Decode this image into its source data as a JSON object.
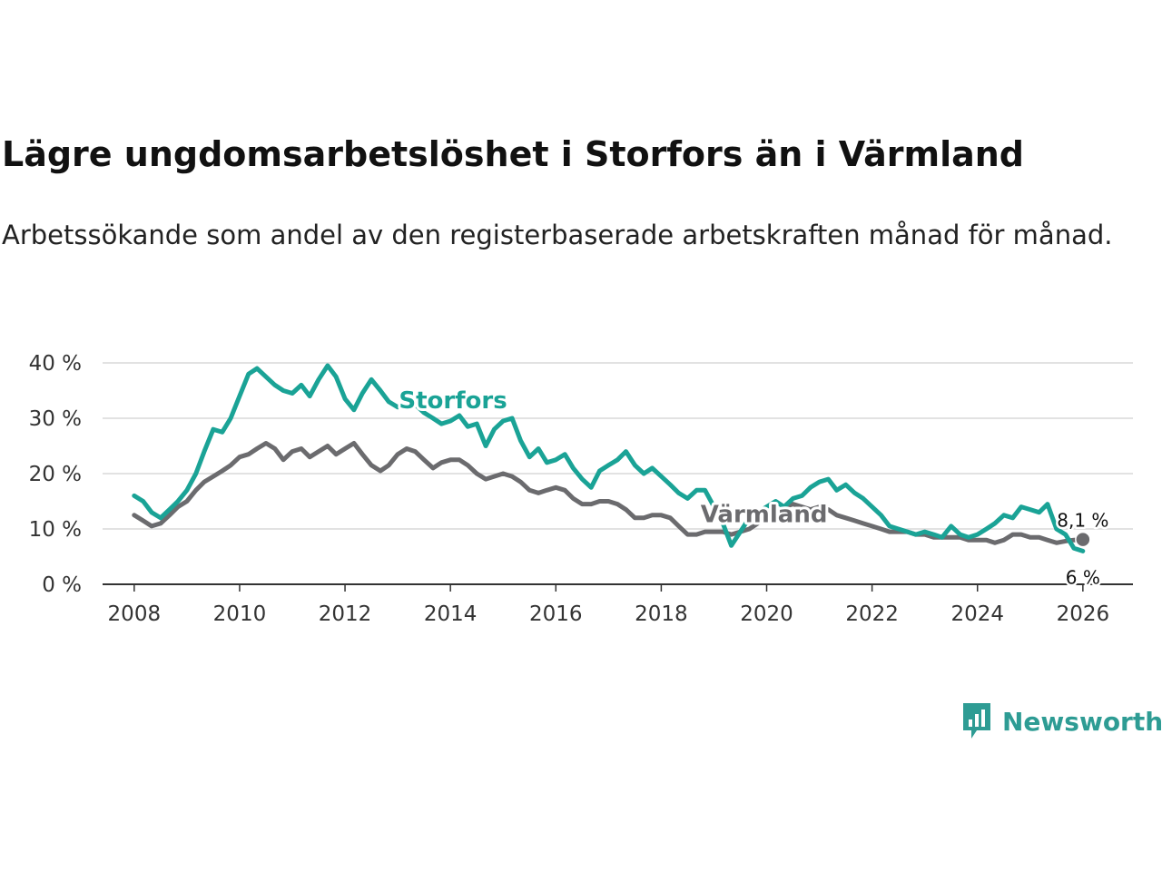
{
  "title": "Lägre ungdomsarbetslöshet i Storfors än i Värmland",
  "subtitle": "Arbetssökande som andel av den registerbaserade arbetskraften månad för månad.",
  "logo": {
    "text": "Newsworthy",
    "icon": "bar-chart-speech-icon"
  },
  "colors": {
    "storfors": "#1aa396",
    "varmland": "#6b6b6e",
    "grid": "#d9d9d9",
    "axis": "#333333"
  },
  "chart_data": {
    "type": "line",
    "title": "Lägre ungdomsarbetslöshet i Storfors än i Värmland",
    "xlabel": "",
    "ylabel": "",
    "xlim": [
      2007.4,
      2026.95
    ],
    "ylim": [
      0,
      40
    ],
    "x_ticks": [
      {
        "value": 2008,
        "label": "2008"
      },
      {
        "value": 2010,
        "label": "2010"
      },
      {
        "value": 2012,
        "label": "2012"
      },
      {
        "value": 2014,
        "label": "2014"
      },
      {
        "value": 2016,
        "label": "2016"
      },
      {
        "value": 2018,
        "label": "2018"
      },
      {
        "value": 2020,
        "label": "2020"
      },
      {
        "value": 2022,
        "label": "2022"
      },
      {
        "value": 2024,
        "label": "2024"
      },
      {
        "value": 2026,
        "label": "2026"
      }
    ],
    "y_ticks": [
      {
        "value": 0,
        "label": "0 %"
      },
      {
        "value": 10,
        "label": "10 %"
      },
      {
        "value": 20,
        "label": "20 %"
      },
      {
        "value": 30,
        "label": "30 %"
      },
      {
        "value": 40,
        "label": "40 %"
      }
    ],
    "grid": true,
    "series": [
      {
        "name": "Värmland",
        "label": "Värmland",
        "label_position": {
          "x": 2019.95,
          "y": 11.2
        },
        "end_label": "8,1 %",
        "end_marker": true,
        "points": [
          [
            2008.0,
            12.5
          ],
          [
            2008.17,
            11.5
          ],
          [
            2008.33,
            10.5
          ],
          [
            2008.5,
            11.0
          ],
          [
            2008.67,
            12.5
          ],
          [
            2008.83,
            14.0
          ],
          [
            2009.0,
            15.0
          ],
          [
            2009.17,
            17.0
          ],
          [
            2009.33,
            18.5
          ],
          [
            2009.5,
            19.5
          ],
          [
            2009.67,
            20.5
          ],
          [
            2009.83,
            21.5
          ],
          [
            2010.0,
            23.0
          ],
          [
            2010.17,
            23.5
          ],
          [
            2010.33,
            24.5
          ],
          [
            2010.5,
            25.5
          ],
          [
            2010.67,
            24.5
          ],
          [
            2010.83,
            22.5
          ],
          [
            2011.0,
            24.0
          ],
          [
            2011.17,
            24.5
          ],
          [
            2011.33,
            23.0
          ],
          [
            2011.5,
            24.0
          ],
          [
            2011.67,
            25.0
          ],
          [
            2011.83,
            23.5
          ],
          [
            2012.0,
            24.5
          ],
          [
            2012.17,
            25.5
          ],
          [
            2012.33,
            23.5
          ],
          [
            2012.5,
            21.5
          ],
          [
            2012.67,
            20.5
          ],
          [
            2012.83,
            21.5
          ],
          [
            2013.0,
            23.5
          ],
          [
            2013.17,
            24.5
          ],
          [
            2013.33,
            24.0
          ],
          [
            2013.5,
            22.5
          ],
          [
            2013.67,
            21.0
          ],
          [
            2013.83,
            22.0
          ],
          [
            2014.0,
            22.5
          ],
          [
            2014.17,
            22.5
          ],
          [
            2014.33,
            21.5
          ],
          [
            2014.5,
            20.0
          ],
          [
            2014.67,
            19.0
          ],
          [
            2014.83,
            19.5
          ],
          [
            2015.0,
            20.0
          ],
          [
            2015.17,
            19.5
          ],
          [
            2015.33,
            18.5
          ],
          [
            2015.5,
            17.0
          ],
          [
            2015.67,
            16.5
          ],
          [
            2015.83,
            17.0
          ],
          [
            2016.0,
            17.5
          ],
          [
            2016.17,
            17.0
          ],
          [
            2016.33,
            15.5
          ],
          [
            2016.5,
            14.5
          ],
          [
            2016.67,
            14.5
          ],
          [
            2016.83,
            15.0
          ],
          [
            2017.0,
            15.0
          ],
          [
            2017.17,
            14.5
          ],
          [
            2017.33,
            13.5
          ],
          [
            2017.5,
            12.0
          ],
          [
            2017.67,
            12.0
          ],
          [
            2017.83,
            12.5
          ],
          [
            2018.0,
            12.5
          ],
          [
            2018.17,
            12.0
          ],
          [
            2018.33,
            10.5
          ],
          [
            2018.5,
            9.0
          ],
          [
            2018.67,
            9.0
          ],
          [
            2018.83,
            9.5
          ],
          [
            2019.0,
            9.5
          ],
          [
            2019.17,
            9.5
          ],
          [
            2019.33,
            9.0
          ],
          [
            2019.5,
            9.5
          ],
          [
            2019.67,
            10.0
          ],
          [
            2019.83,
            11.0
          ],
          [
            2020.0,
            12.0
          ],
          [
            2020.17,
            13.0
          ],
          [
            2020.33,
            14.0
          ],
          [
            2020.5,
            14.5
          ],
          [
            2020.67,
            14.0
          ],
          [
            2020.83,
            13.5
          ],
          [
            2021.0,
            14.0
          ],
          [
            2021.17,
            13.5
          ],
          [
            2021.33,
            12.5
          ],
          [
            2021.5,
            12.0
          ],
          [
            2021.67,
            11.5
          ],
          [
            2021.83,
            11.0
          ],
          [
            2022.0,
            10.5
          ],
          [
            2022.17,
            10.0
          ],
          [
            2022.33,
            9.5
          ],
          [
            2022.5,
            9.5
          ],
          [
            2022.67,
            9.5
          ],
          [
            2022.83,
            9.0
          ],
          [
            2023.0,
            9.0
          ],
          [
            2023.17,
            8.5
          ],
          [
            2023.33,
            8.5
          ],
          [
            2023.5,
            8.5
          ],
          [
            2023.67,
            8.5
          ],
          [
            2023.83,
            8.0
          ],
          [
            2024.0,
            8.0
          ],
          [
            2024.17,
            8.0
          ],
          [
            2024.33,
            7.5
          ],
          [
            2024.5,
            8.0
          ],
          [
            2024.67,
            9.0
          ],
          [
            2024.83,
            9.0
          ],
          [
            2025.0,
            8.5
          ],
          [
            2025.17,
            8.5
          ],
          [
            2025.33,
            8.0
          ],
          [
            2025.5,
            7.5
          ],
          [
            2025.67,
            7.8
          ],
          [
            2025.83,
            8.0
          ],
          [
            2026.0,
            8.1
          ]
        ]
      },
      {
        "name": "Storfors",
        "label": "Storfors",
        "label_position": {
          "x": 2014.05,
          "y": 31.8
        },
        "end_label": "6 %",
        "end_marker": false,
        "points": [
          [
            2008.0,
            16.0
          ],
          [
            2008.17,
            15.0
          ],
          [
            2008.33,
            13.0
          ],
          [
            2008.5,
            12.0
          ],
          [
            2008.67,
            13.5
          ],
          [
            2008.83,
            15.0
          ],
          [
            2009.0,
            17.0
          ],
          [
            2009.17,
            20.0
          ],
          [
            2009.33,
            24.0
          ],
          [
            2009.5,
            28.0
          ],
          [
            2009.67,
            27.5
          ],
          [
            2009.83,
            30.0
          ],
          [
            2010.0,
            34.0
          ],
          [
            2010.17,
            38.0
          ],
          [
            2010.33,
            39.0
          ],
          [
            2010.5,
            37.5
          ],
          [
            2010.67,
            36.0
          ],
          [
            2010.83,
            35.0
          ],
          [
            2011.0,
            34.5
          ],
          [
            2011.17,
            36.0
          ],
          [
            2011.33,
            34.0
          ],
          [
            2011.5,
            37.0
          ],
          [
            2011.67,
            39.5
          ],
          [
            2011.83,
            37.5
          ],
          [
            2012.0,
            33.5
          ],
          [
            2012.17,
            31.5
          ],
          [
            2012.33,
            34.5
          ],
          [
            2012.5,
            37.0
          ],
          [
            2012.67,
            35.0
          ],
          [
            2012.83,
            33.0
          ],
          [
            2013.0,
            32.0
          ],
          [
            2013.17,
            33.0
          ],
          [
            2013.33,
            32.5
          ],
          [
            2013.5,
            31.0
          ],
          [
            2013.67,
            30.0
          ],
          [
            2013.83,
            29.0
          ],
          [
            2014.0,
            29.5
          ],
          [
            2014.17,
            30.5
          ],
          [
            2014.33,
            28.5
          ],
          [
            2014.5,
            29.0
          ],
          [
            2014.67,
            25.0
          ],
          [
            2014.83,
            28.0
          ],
          [
            2015.0,
            29.5
          ],
          [
            2015.17,
            30.0
          ],
          [
            2015.33,
            26.0
          ],
          [
            2015.5,
            23.0
          ],
          [
            2015.67,
            24.5
          ],
          [
            2015.83,
            22.0
          ],
          [
            2016.0,
            22.5
          ],
          [
            2016.17,
            23.5
          ],
          [
            2016.33,
            21.0
          ],
          [
            2016.5,
            19.0
          ],
          [
            2016.67,
            17.5
          ],
          [
            2016.83,
            20.5
          ],
          [
            2017.0,
            21.5
          ],
          [
            2017.17,
            22.5
          ],
          [
            2017.33,
            24.0
          ],
          [
            2017.5,
            21.5
          ],
          [
            2017.67,
            20.0
          ],
          [
            2017.83,
            21.0
          ],
          [
            2018.0,
            19.5
          ],
          [
            2018.17,
            18.0
          ],
          [
            2018.33,
            16.5
          ],
          [
            2018.5,
            15.5
          ],
          [
            2018.67,
            17.0
          ],
          [
            2018.83,
            17.0
          ],
          [
            2019.0,
            14.0
          ],
          [
            2019.17,
            11.0
          ],
          [
            2019.33,
            7.0
          ],
          [
            2019.5,
            9.5
          ],
          [
            2019.67,
            12.0
          ],
          [
            2019.83,
            13.0
          ],
          [
            2020.0,
            14.0
          ],
          [
            2020.17,
            15.0
          ],
          [
            2020.33,
            14.0
          ],
          [
            2020.5,
            15.5
          ],
          [
            2020.67,
            16.0
          ],
          [
            2020.83,
            17.5
          ],
          [
            2021.0,
            18.5
          ],
          [
            2021.17,
            19.0
          ],
          [
            2021.33,
            17.0
          ],
          [
            2021.5,
            18.0
          ],
          [
            2021.67,
            16.5
          ],
          [
            2021.83,
            15.5
          ],
          [
            2022.0,
            14.0
          ],
          [
            2022.17,
            12.5
          ],
          [
            2022.33,
            10.5
          ],
          [
            2022.5,
            10.0
          ],
          [
            2022.67,
            9.5
          ],
          [
            2022.83,
            9.0
          ],
          [
            2023.0,
            9.5
          ],
          [
            2023.17,
            9.0
          ],
          [
            2023.33,
            8.5
          ],
          [
            2023.5,
            10.5
          ],
          [
            2023.67,
            9.0
          ],
          [
            2023.83,
            8.5
          ],
          [
            2024.0,
            9.0
          ],
          [
            2024.17,
            10.0
          ],
          [
            2024.33,
            11.0
          ],
          [
            2024.5,
            12.5
          ],
          [
            2024.67,
            12.0
          ],
          [
            2024.83,
            14.0
          ],
          [
            2025.0,
            13.5
          ],
          [
            2025.17,
            13.0
          ],
          [
            2025.33,
            14.5
          ],
          [
            2025.5,
            10.0
          ],
          [
            2025.67,
            9.0
          ],
          [
            2025.83,
            6.5
          ],
          [
            2026.0,
            6.0
          ]
        ]
      }
    ]
  }
}
